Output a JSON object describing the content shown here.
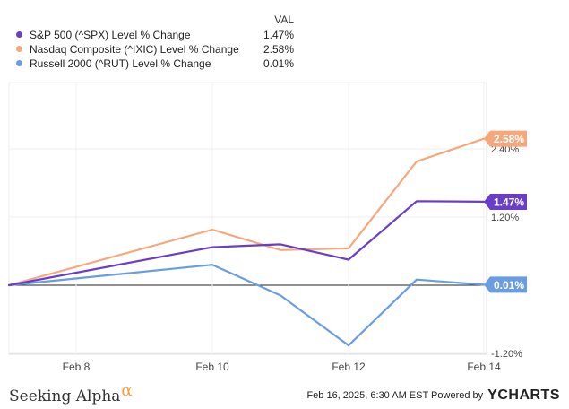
{
  "legend": {
    "header": "VAL",
    "items": [
      {
        "name": "S&P 500 (^SPX) Level % Change",
        "value": "1.47%",
        "color": "#6a3dc6"
      },
      {
        "name": "Nasdaq Composite (^IXIC) Level % Change",
        "value": "2.58%",
        "color": "#f6a77b"
      },
      {
        "name": "Russell 2000 (^RUT) Level % Change",
        "value": "0.01%",
        "color": "#6a9de0"
      }
    ]
  },
  "chart_data": {
    "type": "line",
    "x": [
      "Feb 7",
      "Feb 10",
      "Feb 11",
      "Feb 12",
      "Feb 13",
      "Feb 14"
    ],
    "x_tick_labels": [
      "Feb 8",
      "Feb 10",
      "Feb 12",
      "Feb 14"
    ],
    "y_tick_labels": [
      "2.40%",
      "1.20%",
      "-1.20%"
    ],
    "ylim": [
      -1.4,
      2.6
    ],
    "series": [
      {
        "name": "S&P 500 (^SPX) Level % Change",
        "color": "#6a3dc6",
        "end_label": "1.47%",
        "values": [
          0.0,
          0.67,
          0.72,
          0.45,
          1.48,
          1.47
        ]
      },
      {
        "name": "Nasdaq Composite (^IXIC) Level % Change",
        "color": "#f6a77b",
        "end_label": "2.58%",
        "values": [
          0.0,
          0.98,
          0.62,
          0.65,
          2.18,
          2.58
        ]
      },
      {
        "name": "Russell 2000 (^RUT) Level % Change",
        "color": "#6a9de0",
        "end_label": "0.01%",
        "values": [
          0.0,
          0.36,
          -0.18,
          -1.06,
          0.1,
          0.01
        ]
      }
    ]
  },
  "footer": {
    "brand": "Seeking Alpha",
    "brand_mark": "α",
    "timestamp": "Feb 16, 2025, 6:30 AM EST Powered by",
    "powered_logo": "YCHARTS"
  }
}
